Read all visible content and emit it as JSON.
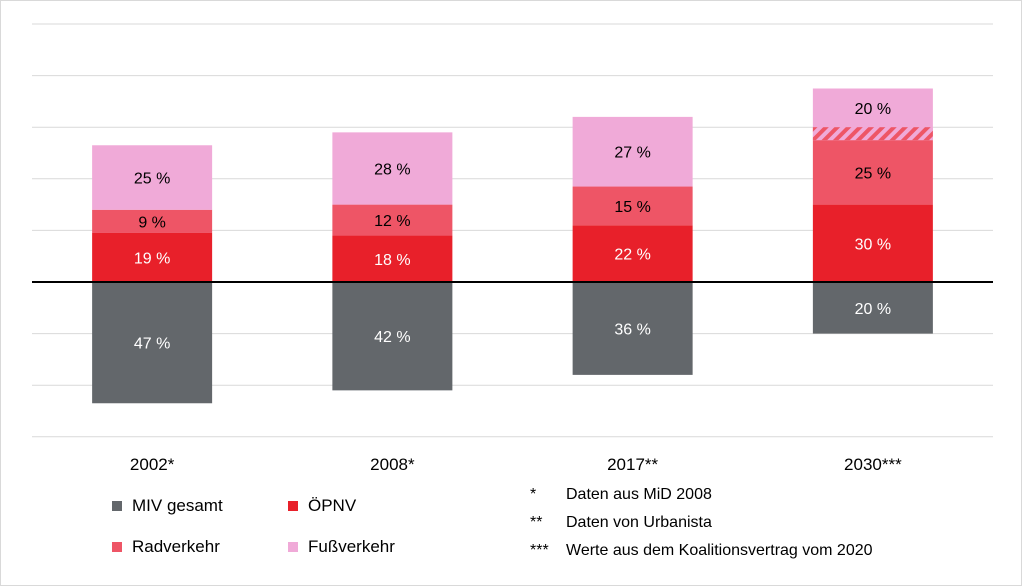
{
  "chart_data": {
    "type": "bar",
    "stacked": true,
    "categories": [
      "2002*",
      "2008*",
      "2017**",
      "2030***"
    ],
    "series": [
      {
        "name": "MIV gesamt",
        "color": "#63676b",
        "direction": "down",
        "values": [
          47,
          42,
          36,
          20
        ],
        "labels": [
          "47 %",
          "42 %",
          "36 %",
          "20 %"
        ]
      },
      {
        "name": "ÖPNV",
        "color": "#e8202a",
        "direction": "up",
        "values": [
          19,
          18,
          22,
          30
        ],
        "labels": [
          "19 %",
          "18 %",
          "22 %",
          "30 %"
        ]
      },
      {
        "name": "Radverkehr",
        "color": "#ee5566",
        "direction": "up",
        "values": [
          9,
          12,
          15,
          25
        ],
        "labels": [
          "9 %",
          "12 %",
          "15 %",
          "25 %"
        ]
      },
      {
        "name": "Fußverkehr",
        "color": "#f0aad8",
        "direction": "up",
        "values": [
          25,
          28,
          27,
          20
        ],
        "labels": [
          "25 %",
          "28 %",
          "27 %",
          "20 %"
        ]
      }
    ],
    "hatched_segment": {
      "category_index": 3,
      "value": 5
    },
    "grid": true,
    "legend_position": "bottom-left"
  },
  "footnotes": [
    {
      "mark": "*",
      "text": "Daten aus MiD 2008"
    },
    {
      "mark": "**",
      "text": "Daten von Urbanista"
    },
    {
      "mark": "***",
      "text": "Werte aus dem Koalitionsvertrag vom 2020"
    }
  ]
}
